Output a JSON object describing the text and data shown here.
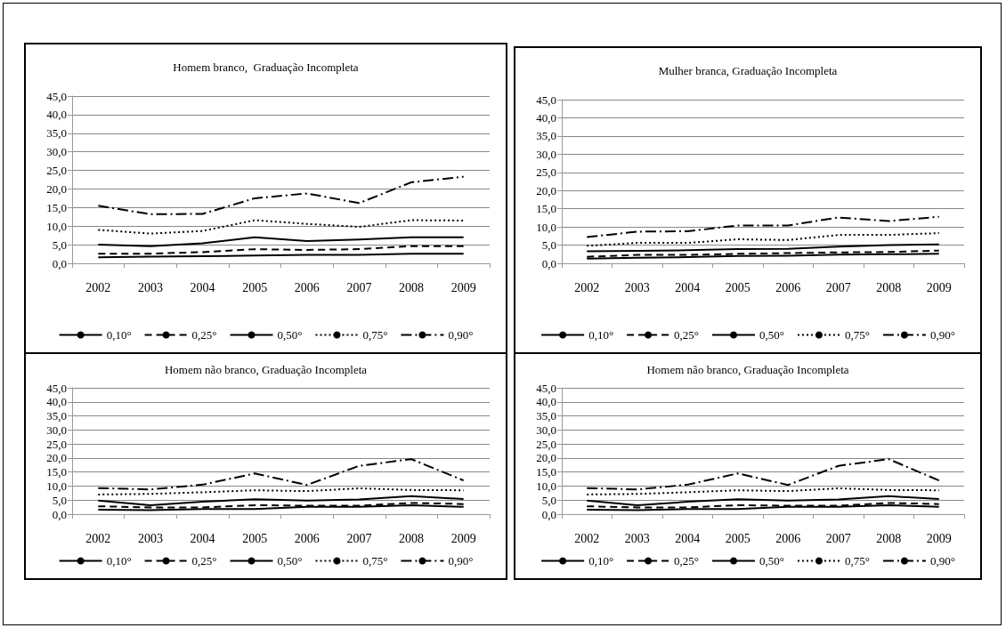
{
  "chart_data": [
    {
      "type": "line",
      "title": "Homem branco,  Graduação Incompleta",
      "categories": [
        "2002",
        "2003",
        "2004",
        "2005",
        "2006",
        "2007",
        "2008",
        "2009"
      ],
      "series": [
        {
          "name": "0,10°",
          "color": "#000000",
          "line_style": "solid",
          "values": [
            1.6,
            1.8,
            1.9,
            2.1,
            2.3,
            2.3,
            2.6,
            2.6
          ]
        },
        {
          "name": "0,25°",
          "color": "#000000",
          "line_style": "dashed",
          "values": [
            2.6,
            2.6,
            3.0,
            3.8,
            3.6,
            3.8,
            4.6,
            4.6
          ]
        },
        {
          "name": "0,50°",
          "color": "#000000",
          "line_style": "solid",
          "values": [
            5.0,
            4.6,
            5.4,
            7.0,
            6.0,
            6.4,
            7.0,
            7.0
          ]
        },
        {
          "name": "0,75°",
          "color": "#000000",
          "line_style": "dotted",
          "values": [
            9.0,
            8.0,
            8.7,
            11.6,
            10.6,
            9.8,
            11.6,
            11.5
          ]
        },
        {
          "name": "0,90°",
          "color": "#000000",
          "line_style": "dashdot",
          "values": [
            15.5,
            13.2,
            13.3,
            17.5,
            18.8,
            16.2,
            21.8,
            23.3
          ]
        }
      ],
      "ylim": [
        0,
        45
      ],
      "yticks": [
        {
          "value": 0,
          "label": "0,0"
        },
        {
          "value": 5,
          "label": "5,0"
        },
        {
          "value": 10,
          "label": "10,0"
        },
        {
          "value": 15,
          "label": "15,0"
        },
        {
          "value": 20,
          "label": "20,0"
        },
        {
          "value": 25,
          "label": "25,0"
        },
        {
          "value": 30,
          "label": "30,0"
        },
        {
          "value": 35,
          "label": "35,0"
        },
        {
          "value": 40,
          "label": "40,0"
        },
        {
          "value": 45,
          "label": "45,0"
        }
      ],
      "grid": "y",
      "legend": "bottom",
      "marker": "none"
    },
    {
      "type": "line",
      "title": "Mulher branca, Graduação Incompleta",
      "categories": [
        "2002",
        "2003",
        "2004",
        "2005",
        "2006",
        "2007",
        "2008",
        "2009"
      ],
      "series": [
        {
          "name": "0,10°",
          "color": "#000000",
          "line_style": "solid",
          "values": [
            1.3,
            1.5,
            1.7,
            2.0,
            2.1,
            2.4,
            2.5,
            2.6
          ]
        },
        {
          "name": "0,25°",
          "color": "#000000",
          "line_style": "dashed",
          "values": [
            1.8,
            2.3,
            2.3,
            2.6,
            2.8,
            3.0,
            3.1,
            3.5
          ]
        },
        {
          "name": "0,50°",
          "color": "#000000",
          "line_style": "solid",
          "values": [
            3.3,
            3.4,
            3.6,
            3.9,
            4.0,
            4.6,
            5.0,
            5.2
          ]
        },
        {
          "name": "0,75°",
          "color": "#000000",
          "line_style": "dotted",
          "values": [
            4.8,
            5.6,
            5.6,
            6.6,
            6.4,
            7.8,
            7.8,
            8.3
          ]
        },
        {
          "name": "0,90°",
          "color": "#000000",
          "line_style": "dashdot",
          "values": [
            7.2,
            8.7,
            8.8,
            10.4,
            10.4,
            12.6,
            11.6,
            12.8
          ]
        }
      ],
      "ylim": [
        0,
        45
      ],
      "yticks": [
        {
          "value": 0,
          "label": "0,0"
        },
        {
          "value": 5,
          "label": "5,0"
        },
        {
          "value": 10,
          "label": "10,0"
        },
        {
          "value": 15,
          "label": "15,0"
        },
        {
          "value": 20,
          "label": "20,0"
        },
        {
          "value": 25,
          "label": "25,0"
        },
        {
          "value": 30,
          "label": "30,0"
        },
        {
          "value": 35,
          "label": "35,0"
        },
        {
          "value": 40,
          "label": "40,0"
        },
        {
          "value": 45,
          "label": "45,0"
        }
      ],
      "grid": "y",
      "legend": "bottom",
      "marker": "none"
    },
    {
      "type": "line",
      "title": "Homem não branco, Graduação Incompleta",
      "categories": [
        "2002",
        "2003",
        "2004",
        "2005",
        "2006",
        "2007",
        "2008",
        "2009"
      ],
      "series": [
        {
          "name": "0,10°",
          "color": "#000000",
          "line_style": "solid",
          "values": [
            1.6,
            1.4,
            1.8,
            1.8,
            2.6,
            2.6,
            3.2,
            2.6
          ]
        },
        {
          "name": "0,25°",
          "color": "#000000",
          "line_style": "dashed",
          "values": [
            2.8,
            2.4,
            2.4,
            3.2,
            3.0,
            3.0,
            4.0,
            3.6
          ]
        },
        {
          "name": "0,50°",
          "color": "#000000",
          "line_style": "solid",
          "values": [
            4.8,
            3.2,
            4.4,
            5.3,
            4.8,
            5.2,
            6.4,
            5.4
          ]
        },
        {
          "name": "0,75°",
          "color": "#000000",
          "line_style": "dotted",
          "values": [
            7.0,
            7.2,
            7.8,
            8.5,
            8.2,
            9.2,
            8.6,
            8.5
          ]
        },
        {
          "name": "0,90°",
          "color": "#000000",
          "line_style": "dashdot",
          "values": [
            9.3,
            8.8,
            10.5,
            14.5,
            10.4,
            17.2,
            19.6,
            12.0
          ]
        }
      ],
      "ylim": [
        0,
        45
      ],
      "yticks": [
        {
          "value": 0,
          "label": "0,0"
        },
        {
          "value": 5,
          "label": "5,0"
        },
        {
          "value": 10,
          "label": "10,0"
        },
        {
          "value": 15,
          "label": "15,0"
        },
        {
          "value": 20,
          "label": "20,0"
        },
        {
          "value": 25,
          "label": "25,0"
        },
        {
          "value": 30,
          "label": "30,0"
        },
        {
          "value": 35,
          "label": "35,0"
        },
        {
          "value": 40,
          "label": "40,0"
        },
        {
          "value": 45,
          "label": "45,0"
        }
      ],
      "grid": "y",
      "legend": "bottom",
      "marker": "none"
    },
    {
      "type": "line",
      "title": "Homem não branco, Graduação Incompleta",
      "categories": [
        "2002",
        "2003",
        "2004",
        "2005",
        "2006",
        "2007",
        "2008",
        "2009"
      ],
      "series": [
        {
          "name": "0,10°",
          "color": "#000000",
          "line_style": "solid",
          "values": [
            1.6,
            1.4,
            1.8,
            1.8,
            2.6,
            2.6,
            3.2,
            2.6
          ]
        },
        {
          "name": "0,25°",
          "color": "#000000",
          "line_style": "dashed",
          "values": [
            2.8,
            2.4,
            2.4,
            3.2,
            3.0,
            3.0,
            4.0,
            3.6
          ]
        },
        {
          "name": "0,50°",
          "color": "#000000",
          "line_style": "solid",
          "values": [
            4.8,
            3.2,
            4.4,
            5.3,
            4.8,
            5.2,
            6.4,
            5.4
          ]
        },
        {
          "name": "0,75°",
          "color": "#000000",
          "line_style": "dotted",
          "values": [
            7.0,
            7.2,
            7.8,
            8.5,
            8.2,
            9.2,
            8.6,
            8.5
          ]
        },
        {
          "name": "0,90°",
          "color": "#000000",
          "line_style": "dashdot",
          "values": [
            9.3,
            8.8,
            10.5,
            14.5,
            10.4,
            17.2,
            19.6,
            12.0
          ]
        }
      ],
      "ylim": [
        0,
        45
      ],
      "yticks": [
        {
          "value": 0,
          "label": "0,0"
        },
        {
          "value": 5,
          "label": "5,0"
        },
        {
          "value": 10,
          "label": "10,0"
        },
        {
          "value": 15,
          "label": "15,0"
        },
        {
          "value": 20,
          "label": "20,0"
        },
        {
          "value": 25,
          "label": "25,0"
        },
        {
          "value": 30,
          "label": "30,0"
        },
        {
          "value": 35,
          "label": "35,0"
        },
        {
          "value": 40,
          "label": "40,0"
        },
        {
          "value": 45,
          "label": "45,0"
        }
      ],
      "grid": "y",
      "legend": "bottom",
      "marker": "none"
    }
  ]
}
